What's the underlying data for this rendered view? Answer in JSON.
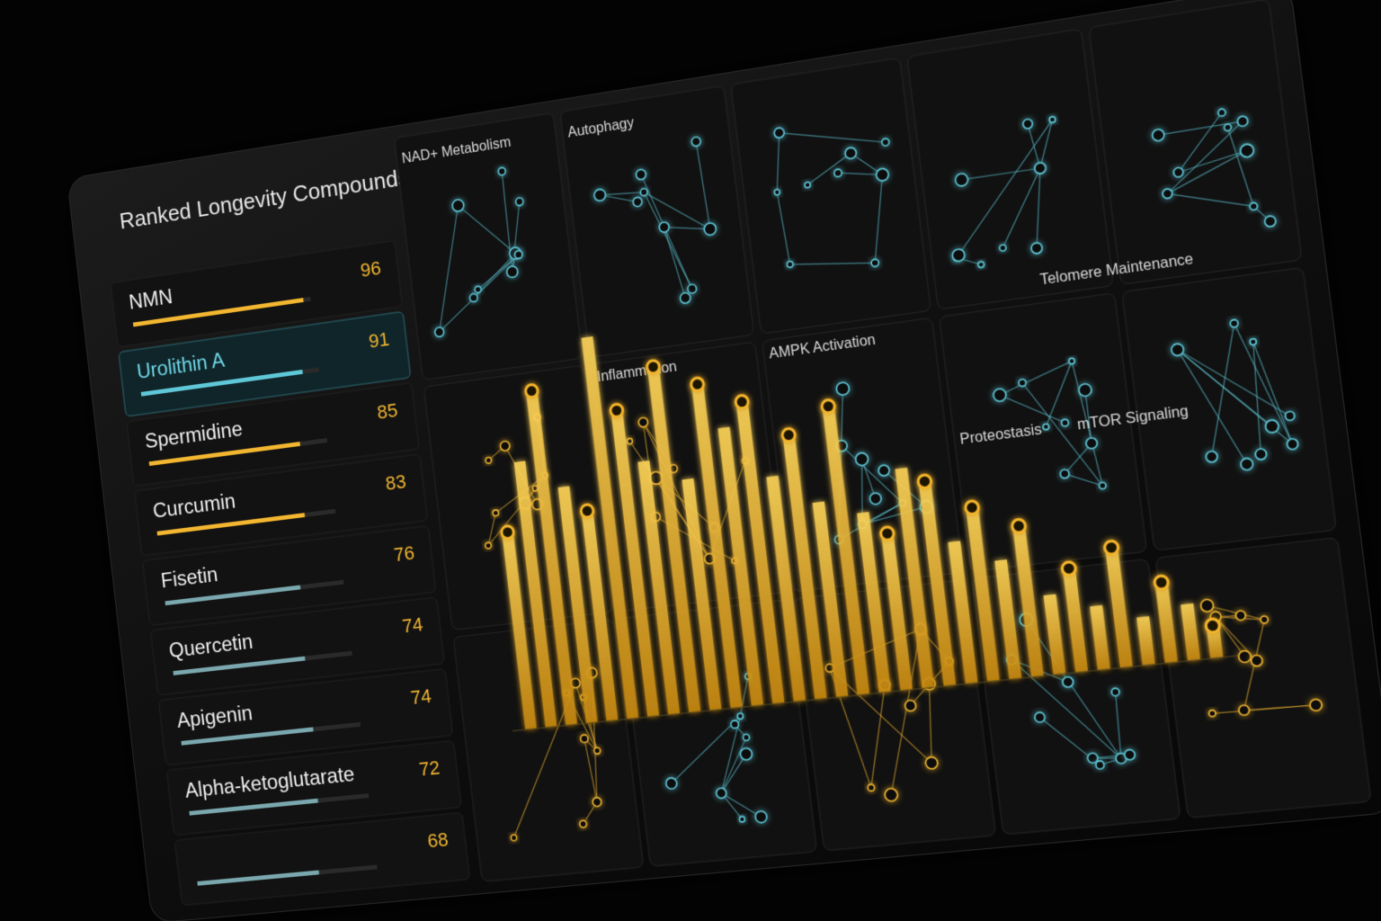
{
  "header": {
    "title": "Ranked Longevity Compounds"
  },
  "compounds": [
    {
      "name": "NMN",
      "score": 96
    },
    {
      "name": "Urolithin A",
      "score": 91
    },
    {
      "name": "Spermidine",
      "score": 85
    },
    {
      "name": "Curcumin",
      "score": 83
    },
    {
      "name": "Fisetin",
      "score": 76
    },
    {
      "name": "Quercetin",
      "score": 74
    },
    {
      "name": "Apigenin",
      "score": 74
    },
    {
      "name": "Alpha-ketoglutarate",
      "score": 72
    },
    {
      "name": null,
      "score": 68
    }
  ],
  "pathways": [
    "NAD+ Metabolism",
    "Autophagy",
    "Inflammation",
    "AMPK Activation",
    "Telomere Maintenance",
    "Proteostasis",
    "mTOR Signaling"
  ],
  "chart_data": {
    "type": "bar",
    "color": "#f5b52a",
    "values": [
      52,
      70,
      88,
      62,
      55,
      100,
      80,
      66,
      90,
      60,
      84,
      72,
      78,
      58,
      68,
      50,
      74,
      46,
      40,
      56,
      52,
      36,
      44,
      30,
      38,
      20,
      26,
      16,
      30,
      12,
      20,
      14,
      8
    ]
  }
}
